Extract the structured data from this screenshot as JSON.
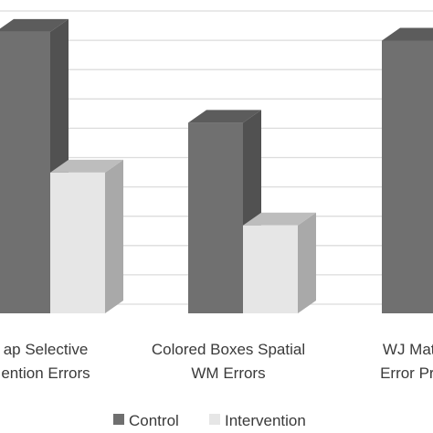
{
  "chart_data": {
    "type": "bar",
    "title": "",
    "xlabel": "",
    "ylabel": "",
    "grid": true,
    "legend_position": "bottom",
    "categories": [
      [
        "ap Selective",
        "ention Errors"
      ],
      [
        "Colored Boxes Spatial",
        "WM Errors"
      ],
      [
        "WJ Math F",
        "Error Propo"
      ]
    ],
    "series": [
      {
        "name": "Control",
        "color": "#707070",
        "values": [
          0.96,
          0.65,
          0.93
        ]
      },
      {
        "name": "Intervention",
        "color": "#e6e6e6",
        "values": [
          0.48,
          0.3,
          null
        ]
      }
    ],
    "ylim": [
      0,
      1
    ]
  }
}
